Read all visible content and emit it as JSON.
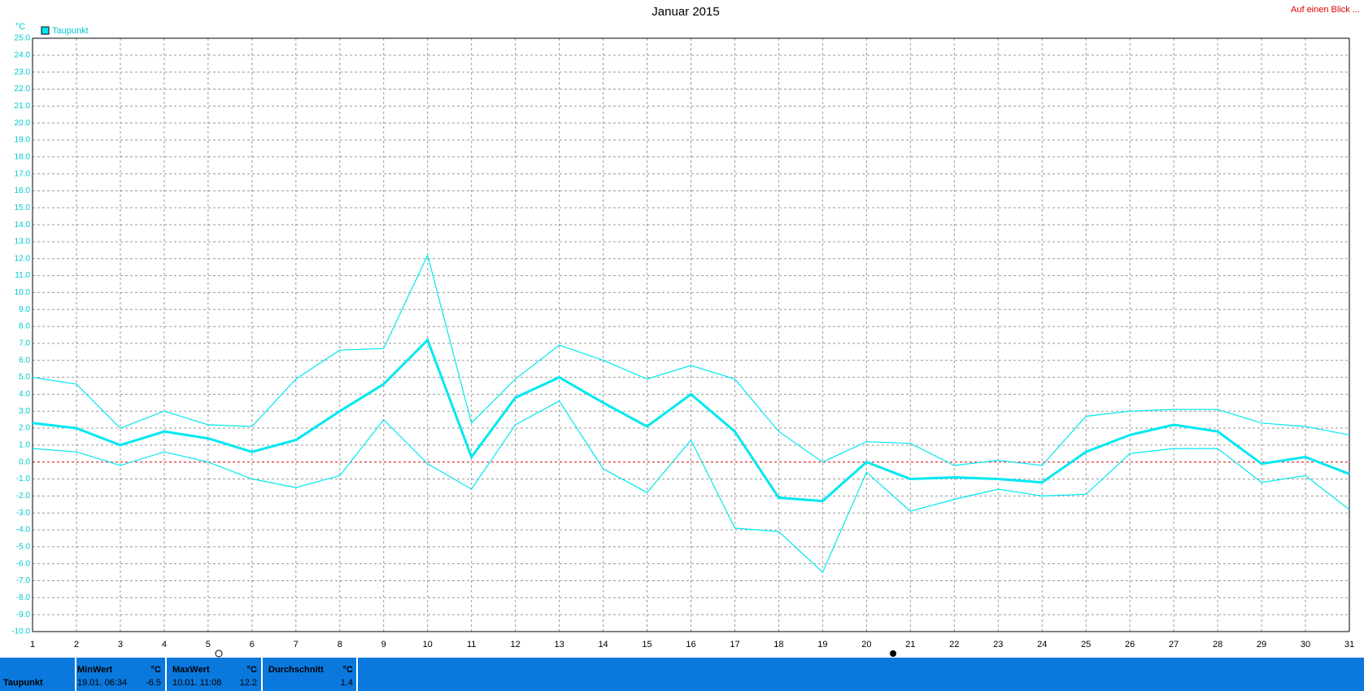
{
  "chart_data": {
    "type": "line",
    "title": "Januar 2015",
    "link": "Auf einen Blick ...",
    "unit": "°C",
    "x": [
      1,
      2,
      3,
      4,
      5,
      6,
      7,
      8,
      9,
      10,
      11,
      12,
      13,
      14,
      15,
      16,
      17,
      18,
      19,
      20,
      21,
      22,
      23,
      24,
      25,
      26,
      27,
      28,
      29,
      30,
      31
    ],
    "xlim": [
      1,
      31
    ],
    "xticks": [
      1,
      2,
      3,
      4,
      5,
      6,
      7,
      8,
      9,
      10,
      11,
      12,
      13,
      14,
      15,
      16,
      17,
      18,
      19,
      20,
      21,
      22,
      23,
      24,
      25,
      26,
      27,
      28,
      29,
      30,
      31
    ],
    "ylim": [
      -10,
      25
    ],
    "yticks": [
      {
        "value": 25,
        "label": "25.0"
      },
      {
        "value": 24,
        "label": "24.0"
      },
      {
        "value": 23,
        "label": "23.0"
      },
      {
        "value": 22,
        "label": "22.0"
      },
      {
        "value": 21,
        "label": "21.0"
      },
      {
        "value": 20,
        "label": "20.0"
      },
      {
        "value": 19,
        "label": "19.0"
      },
      {
        "value": 18,
        "label": "18.0"
      },
      {
        "value": 17,
        "label": "17.0"
      },
      {
        "value": 16,
        "label": "16.0"
      },
      {
        "value": 15,
        "label": "15.0"
      },
      {
        "value": 14,
        "label": "14.0"
      },
      {
        "value": 13,
        "label": "13.0"
      },
      {
        "value": 12,
        "label": "12.0"
      },
      {
        "value": 11,
        "label": "11.0"
      },
      {
        "value": 10,
        "label": "10.0"
      },
      {
        "value": 9,
        "label": "9.0"
      },
      {
        "value": 8,
        "label": "8.0"
      },
      {
        "value": 7,
        "label": "7.0"
      },
      {
        "value": 6,
        "label": "6.0"
      },
      {
        "value": 5,
        "label": "5.0"
      },
      {
        "value": 4,
        "label": "4.0"
      },
      {
        "value": 3,
        "label": "3.0"
      },
      {
        "value": 2,
        "label": "2.0"
      },
      {
        "value": 1,
        "label": "1.0"
      },
      {
        "value": 0,
        "label": "0.0"
      },
      {
        "value": -1,
        "label": "-1.0"
      },
      {
        "value": -2,
        "label": "-2.0"
      },
      {
        "value": -3,
        "label": "-3.0"
      },
      {
        "value": -4,
        "label": "-4.0"
      },
      {
        "value": -5,
        "label": "-5.0"
      },
      {
        "value": -6,
        "label": "-6.0"
      },
      {
        "value": -7,
        "label": "-7.0"
      },
      {
        "value": -8,
        "label": "-8.0"
      },
      {
        "value": -9,
        "label": "-9.0"
      },
      {
        "value": -10,
        "label": "-10.0"
      }
    ],
    "grid": true,
    "series": [
      {
        "color": "#00e8f0",
        "values": [
          5.0,
          4.6,
          2.0,
          3.0,
          2.2,
          2.1,
          4.9,
          6.6,
          6.7,
          12.2,
          2.3,
          4.9,
          6.9,
          6.0,
          4.9,
          5.7,
          4.9,
          1.8,
          0.0,
          1.2,
          1.1,
          -0.2,
          0.1,
          -0.2,
          2.7,
          3.0,
          3.1,
          3.1,
          2.3,
          2.1,
          1.6
        ]
      },
      {
        "name": "Taupunkt",
        "color": "#00e8f0",
        "values": [
          2.3,
          2.0,
          1.0,
          1.8,
          1.4,
          0.6,
          1.3,
          3.0,
          4.6,
          7.2,
          0.3,
          3.8,
          5.0,
          3.5,
          2.1,
          4.0,
          1.8,
          -2.1,
          -2.3,
          0.0,
          -1.0,
          -0.9,
          -1.0,
          -1.2,
          0.6,
          1.6,
          2.2,
          1.8,
          -0.1,
          0.3,
          -0.7
        ]
      },
      {
        "color": "#00e8f0",
        "values": [
          0.8,
          0.6,
          -0.2,
          0.6,
          0.0,
          -1.0,
          -1.5,
          -0.8,
          2.5,
          -0.1,
          -1.6,
          2.2,
          3.6,
          -0.4,
          -1.8,
          1.3,
          -3.9,
          -4.1,
          -6.5,
          -0.6,
          -2.9,
          -2.2,
          -1.6,
          -2.0,
          -1.9,
          0.5,
          0.8,
          0.8,
          -1.2,
          -0.8,
          -2.8
        ]
      }
    ],
    "stats": {
      "label": "Taupunkt",
      "min": {
        "title": "MinWert",
        "unit": "°C",
        "time": "19.01.  06:34",
        "value": "-6.5"
      },
      "max": {
        "title": "MaxWert",
        "unit": "°C",
        "time": "10.01.  11:08",
        "value": "12.2"
      },
      "avg": {
        "title": "Durchschnitt",
        "unit": "°C",
        "value": "1.4"
      }
    }
  }
}
